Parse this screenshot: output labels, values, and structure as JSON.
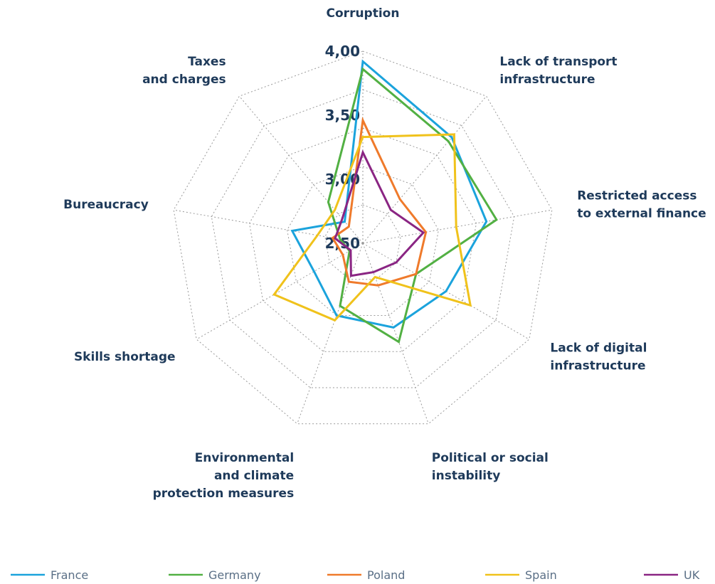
{
  "chart_data": {
    "type": "radar",
    "categories": [
      "Corruption",
      "Lack of transport infrastructure",
      "Restricted access to external finance",
      "Lack of digital infrastructure",
      "Political or social instability",
      "Environmental and climate protection measures",
      "Skills shortage",
      "Bureaucracy",
      "Taxes and charges"
    ],
    "category_lines": [
      [
        "Corruption"
      ],
      [
        "Lack of transport",
        "infrastructure"
      ],
      [
        "Restricted access",
        "to external finance"
      ],
      [
        "Lack of digital",
        "infrastructure"
      ],
      [
        "Political or social",
        "instability"
      ],
      [
        "Environmental",
        "and climate",
        "protection measures"
      ],
      [
        "Skills shortage"
      ],
      [
        "Bureaucracy"
      ],
      [
        "Taxes",
        "and charges"
      ]
    ],
    "r_ticks": [
      "2,50",
      "3,00",
      "3,50",
      "4,00"
    ],
    "r_tick_values": [
      2.5,
      3.0,
      3.5,
      4.0
    ],
    "r_range": [
      2.5,
      4.0
    ],
    "grid": true,
    "legend_position": "bottom",
    "series": [
      {
        "name": "France",
        "color": "#1ba3dc",
        "values": [
          3.92,
          3.58,
          3.48,
          3.25,
          3.2,
          3.1,
          2.94,
          3.06,
          2.72
        ]
      },
      {
        "name": "Germany",
        "color": "#52b043",
        "values": [
          3.86,
          3.54,
          3.56,
          2.98,
          3.32,
          3.02,
          2.62,
          2.68,
          2.92
        ]
      },
      {
        "name": "Poland",
        "color": "#ef7a2b",
        "values": [
          3.46,
          2.95,
          3.0,
          2.98,
          2.85,
          2.82,
          2.68,
          2.74,
          2.67
        ]
      },
      {
        "name": "Spain",
        "color": "#f0c21b",
        "values": [
          3.33,
          3.61,
          3.24,
          3.47,
          2.78,
          3.14,
          3.3,
          2.86,
          2.84
        ]
      },
      {
        "name": "UK",
        "color": "#8a2583",
        "values": [
          3.21,
          2.84,
          2.98,
          2.8,
          2.74,
          2.77,
          2.61,
          2.72,
          2.75
        ]
      }
    ]
  }
}
